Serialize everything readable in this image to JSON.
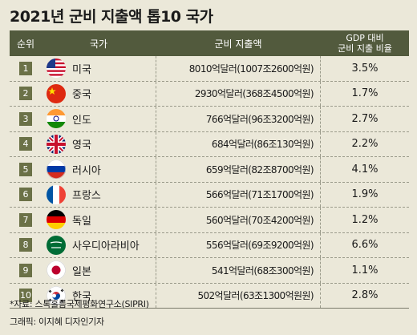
{
  "title": "2021년 군비 지출액 톱10 국가",
  "headers": {
    "rank": "순위",
    "country": "국가",
    "spending": "군비 지출액",
    "ratio_line1": "GDP 대비",
    "ratio_line2": "군비 지출 비율"
  },
  "rows": [
    {
      "rank": "1",
      "country": "미국",
      "spending": "8010억달러(1007조2600억원)",
      "ratio": "3.5%",
      "flag": "us-flag-icon"
    },
    {
      "rank": "2",
      "country": "중국",
      "spending": "2930억달러(368조4500억원)",
      "ratio": "1.7%",
      "flag": "china-flag-icon"
    },
    {
      "rank": "3",
      "country": "인도",
      "spending": "766억달러(96조3200억원)",
      "ratio": "2.7%",
      "flag": "india-flag-icon"
    },
    {
      "rank": "4",
      "country": "영국",
      "spending": "684억달러(86조130억원)",
      "ratio": "2.2%",
      "flag": "uk-flag-icon"
    },
    {
      "rank": "5",
      "country": "러시아",
      "spending": "659억달러(82조8700억원)",
      "ratio": "4.1%",
      "flag": "russia-flag-icon"
    },
    {
      "rank": "6",
      "country": "프랑스",
      "spending": "566억달러(71조1700억원)",
      "ratio": "1.9%",
      "flag": "france-flag-icon"
    },
    {
      "rank": "7",
      "country": "독일",
      "spending": "560억달러(70조4200억원)",
      "ratio": "1.2%",
      "flag": "germany-flag-icon"
    },
    {
      "rank": "8",
      "country": "사우디아라비아",
      "spending": "556억달러(69조9200억원)",
      "ratio": "6.6%",
      "flag": "saudi-flag-icon"
    },
    {
      "rank": "9",
      "country": "일본",
      "spending": "541억달러(68조300억원)",
      "ratio": "1.1%",
      "flag": "japan-flag-icon"
    },
    {
      "rank": "10",
      "country": "한국",
      "spending": "502억달러(63조1300억원원)",
      "ratio": "2.8%",
      "flag": "korea-flag-icon"
    }
  ],
  "source": "*자료: 스톡홀름국제평화연구소(SIPRI)",
  "credit": "그래픽: 이지혜 디자인기자",
  "colors": {
    "header_bg": "#525a3d",
    "badge_bg": "#6b7147",
    "page_bg": "#ebe8d9"
  },
  "chart_data": {
    "type": "table",
    "title": "2021년 군비 지출액 톱10 국가",
    "columns": [
      "순위",
      "국가",
      "군비 지출액",
      "GDP 대비 군비 지출 비율"
    ],
    "rows": [
      [
        "1",
        "미국",
        "8010억달러(1007조2600억원)",
        "3.5%"
      ],
      [
        "2",
        "중국",
        "2930억달러(368조4500억원)",
        "1.7%"
      ],
      [
        "3",
        "인도",
        "766억달러(96조3200억원)",
        "2.7%"
      ],
      [
        "4",
        "영국",
        "684억달러(86조130억원)",
        "2.2%"
      ],
      [
        "5",
        "러시아",
        "659억달러(82조8700억원)",
        "4.1%"
      ],
      [
        "6",
        "프랑스",
        "566억달러(71조1700억원)",
        "1.9%"
      ],
      [
        "7",
        "독일",
        "560억달러(70조4200억원)",
        "1.2%"
      ],
      [
        "8",
        "사우디아라비아",
        "556억달러(69조9200억원)",
        "6.6%"
      ],
      [
        "9",
        "일본",
        "541억달러(68조300억원)",
        "1.1%"
      ],
      [
        "10",
        "한국",
        "502억달러(63조1300억원원)",
        "2.8%"
      ]
    ]
  }
}
